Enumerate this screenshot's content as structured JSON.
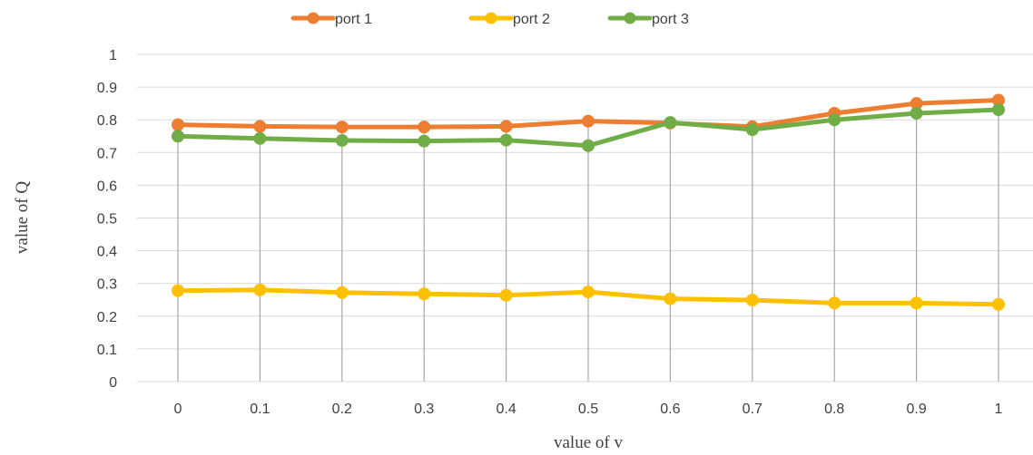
{
  "chart_data": {
    "type": "line",
    "title": "",
    "xlabel": "value of v",
    "ylabel": "value of Q",
    "x": [
      "0",
      "0.1",
      "0.2",
      "0.3",
      "0.4",
      "0.5",
      "0.6",
      "0.7",
      "0.8",
      "0.9",
      "1"
    ],
    "ylim": [
      0,
      1
    ],
    "yticks": [
      "0",
      "0.1",
      "0.2",
      "0.3",
      "0.4",
      "0.5",
      "0.6",
      "0.7",
      "0.8",
      "0.9",
      "1"
    ],
    "grid": "horizontal and vertical",
    "legend_position": "top",
    "series": [
      {
        "name": "port 1",
        "color": "#ED7D31",
        "values": [
          0.785,
          0.78,
          0.778,
          0.778,
          0.78,
          0.796,
          0.79,
          0.779,
          0.82,
          0.85,
          0.86
        ]
      },
      {
        "name": "port 2",
        "color": "#FFC000",
        "values": [
          0.278,
          0.28,
          0.272,
          0.268,
          0.264,
          0.274,
          0.253,
          0.249,
          0.24,
          0.24,
          0.236
        ]
      },
      {
        "name": "port 3",
        "color": "#70AD47",
        "values": [
          0.75,
          0.743,
          0.737,
          0.735,
          0.738,
          0.721,
          0.792,
          0.77,
          0.8,
          0.82,
          0.831
        ]
      }
    ]
  }
}
